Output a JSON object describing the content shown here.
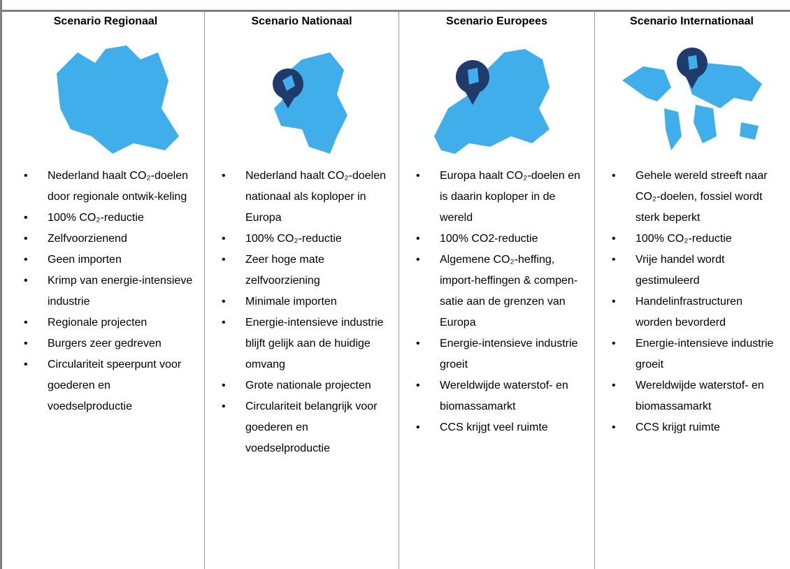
{
  "columns": [
    {
      "title": "Scenario Regionaal",
      "items": [
        "Nederland haalt CO₂-doelen door regionale ontwik-keling",
        "100% CO₂-reductie",
        "Zelfvoorzienend",
        "Geen importen",
        "Krimp van energie-intensieve industrie",
        "Regionale projecten",
        "Burgers zeer gedreven",
        "Circulariteit speerpunt voor goederen en voedselproductie"
      ]
    },
    {
      "title": "Scenario Nationaal",
      "items": [
        "Nederland haalt CO₂-doelen nationaal als koploper in Europa",
        "100% CO₂-reductie",
        "Zeer hoge mate zelfvoorziening",
        "Minimale importen",
        "Energie-intensieve industrie blijft gelijk aan de huidige omvang",
        "Grote nationale projecten",
        "Circulariteit belangrijk voor goederen en voedselproductie"
      ]
    },
    {
      "title": "Scenario Europees",
      "items": [
        "Europa haalt CO₂-doelen en is daarin koploper in de wereld",
        "100% CO2-reductie",
        "Algemene CO₂-heffing, import-heffingen & compen-satie aan de grenzen van Europa",
        "Energie-intensieve industrie groeit",
        "Wereldwijde waterstof- en biomassamarkt",
        "CCS krijgt veel ruimte"
      ]
    },
    {
      "title": "Scenario Internationaal",
      "items": [
        "Gehele wereld streeft naar CO₂-doelen, fossiel wordt sterk beperkt",
        "100% CO₂-reductie",
        "Vrije handel wordt gestimuleerd",
        "Handelinfrastructuren worden bevorderd",
        "Energie-intensieve industrie groeit",
        "Wereldwijde waterstof- en biomassamarkt",
        "CCS krijgt ruimte"
      ]
    }
  ]
}
